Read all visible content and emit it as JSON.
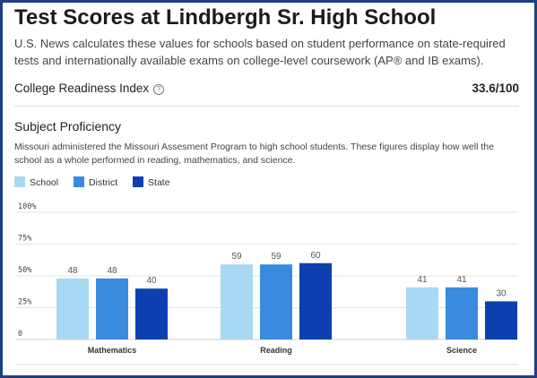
{
  "header": {
    "title": "Test Scores at Lindbergh Sr. High School",
    "description": "U.S. News calculates these values for schools based on student performance on state-required tests and internationally available exams on college-level coursework (AP® and IB exams)."
  },
  "college_readiness": {
    "label": "College Readiness Index",
    "info_icon": "info-circle-icon",
    "value": "33.6/100"
  },
  "subject_proficiency": {
    "title": "Subject Proficiency",
    "description": "Missouri administered the Missouri Assesment Program to high school students. These figures display how well the school as a whole performed in reading, mathematics, and science."
  },
  "colors": {
    "school": "#a9d8f4",
    "district": "#3a8be0",
    "state": "#0d3fb0",
    "frame": "#1f3f86"
  },
  "chart_data": {
    "type": "bar",
    "categories": [
      "Mathematics",
      "Reading",
      "Science"
    ],
    "series": [
      {
        "name": "School",
        "values": [
          48,
          59,
          41
        ]
      },
      {
        "name": "District",
        "values": [
          48,
          59,
          41
        ]
      },
      {
        "name": "State",
        "values": [
          40,
          60,
          30
        ]
      }
    ],
    "yticks": [
      "0",
      "25%",
      "50%",
      "75%",
      "100%"
    ],
    "ylim": [
      0,
      100
    ],
    "grid": true,
    "legend": "top-left"
  }
}
